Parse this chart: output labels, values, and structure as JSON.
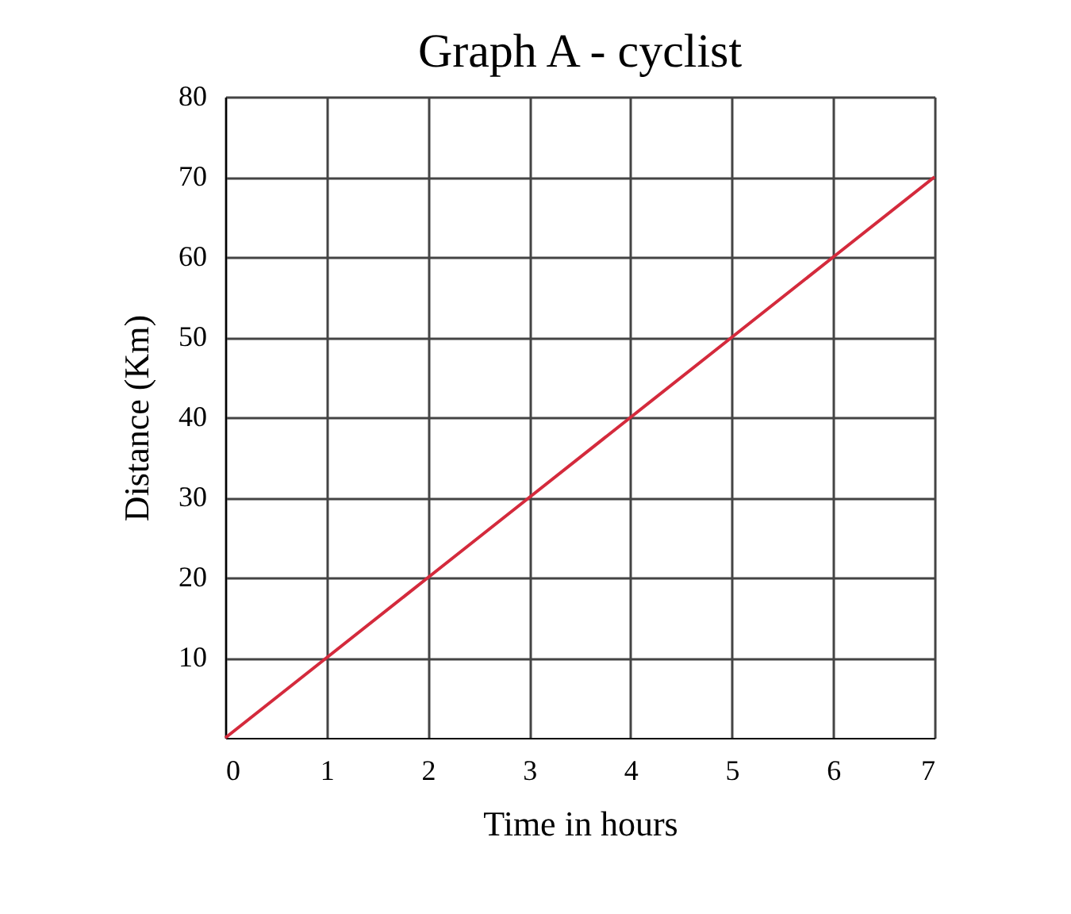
{
  "chart_data": {
    "type": "line",
    "title": "Graph A - cyclist",
    "xlabel": "Time in hours",
    "ylabel": "Distance (Km)",
    "x": [
      0,
      1,
      2,
      3,
      4,
      5,
      6,
      7
    ],
    "series": [
      {
        "color": "#d42a3c",
        "values": [
          0,
          10,
          20,
          30,
          40,
          50,
          60,
          70
        ]
      }
    ],
    "xlim": [
      0,
      7
    ],
    "xticks": [
      0,
      1,
      2,
      3,
      4,
      5,
      6,
      7
    ],
    "ylim": [
      0,
      80
    ],
    "yticks": [
      10,
      20,
      30,
      40,
      50,
      60,
      70,
      80
    ],
    "grid": true,
    "marker": "none",
    "line_style": "solid"
  }
}
